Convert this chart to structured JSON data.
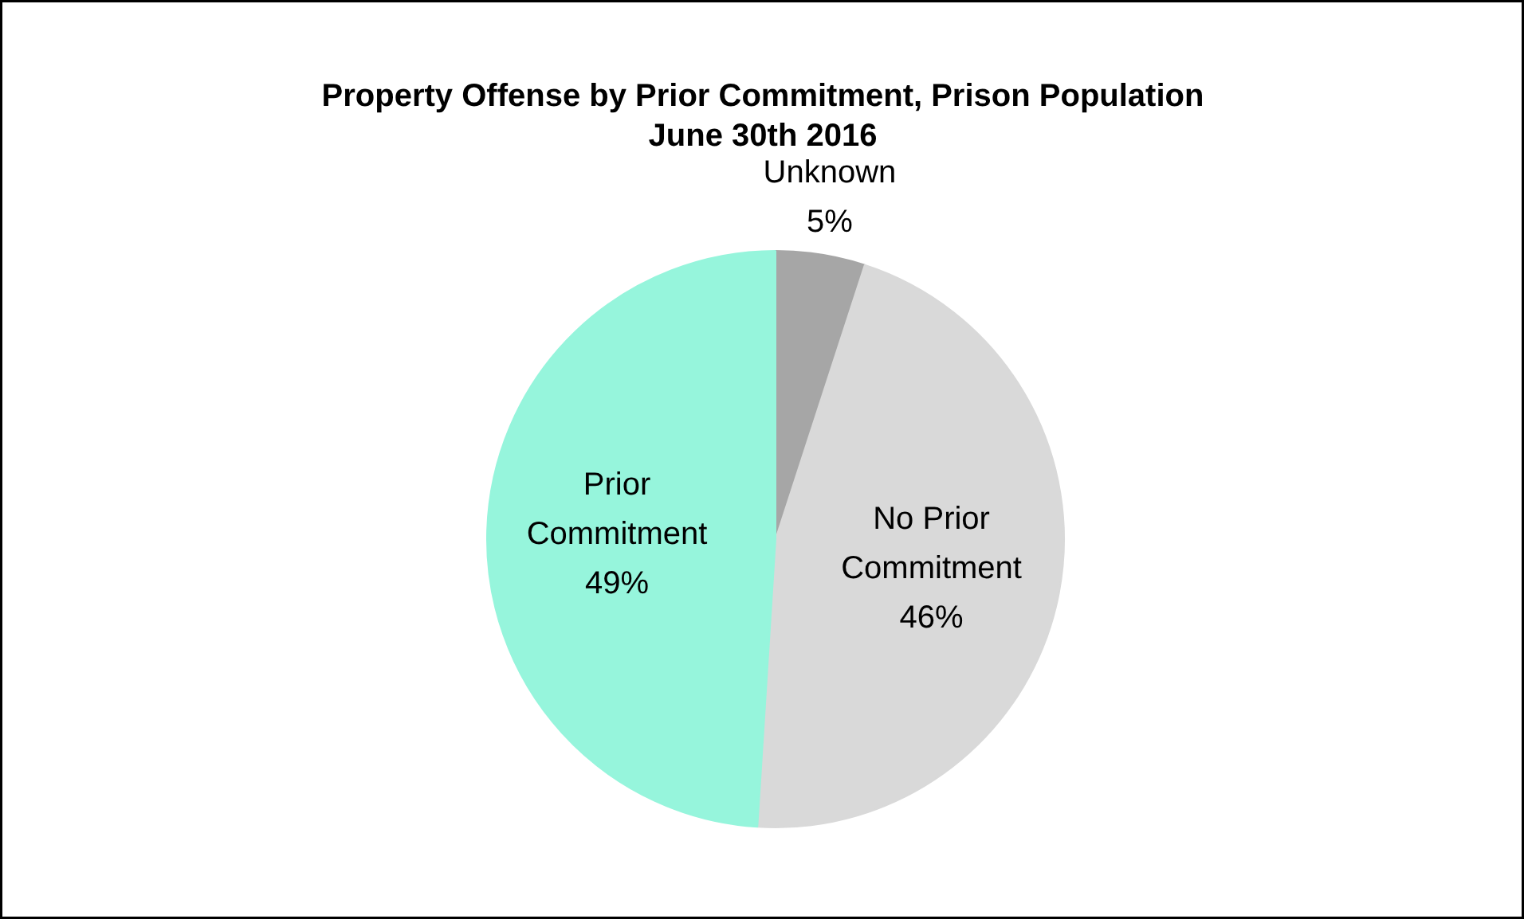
{
  "chart_data": {
    "type": "pie",
    "title": "Property Offense by Prior Commitment, Prison Population\nJune 30th 2016",
    "categories": [
      "Unknown",
      "No Prior Commitment",
      "Prior Commitment"
    ],
    "values": [
      5,
      46,
      49
    ],
    "colors": [
      "#a6a6a6",
      "#d9d9d9",
      "#96f5dc"
    ],
    "value_labels": [
      "5%",
      "46%",
      "49%"
    ],
    "legend": false
  }
}
